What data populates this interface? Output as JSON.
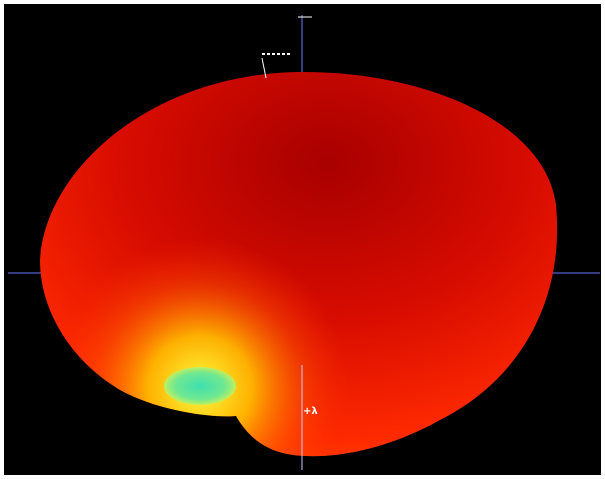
{
  "scene": {
    "labels": [
      {
        "text": "+λ"
      }
    ]
  }
}
